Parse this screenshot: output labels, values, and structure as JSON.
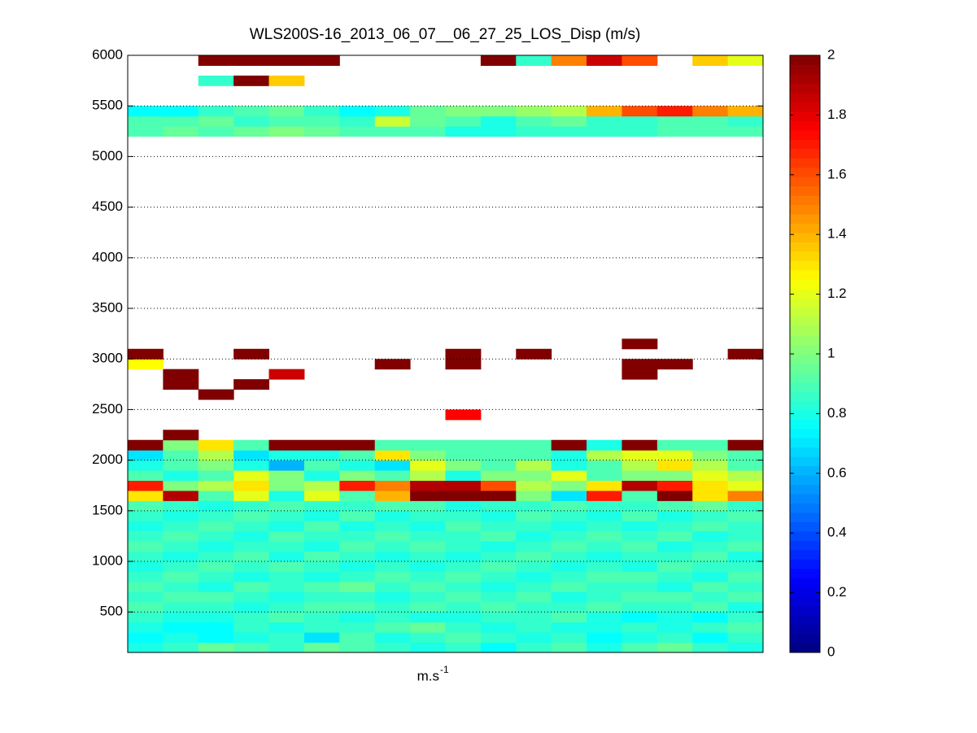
{
  "chart_data": {
    "type": "heatmap",
    "title": "WLS200S-16_2013_06_07__06_27_25_LOS_Disp (m/s)",
    "xlabel": "m.s",
    "xlabel_sup": "-1",
    "ylim": [
      100,
      6000
    ],
    "yticks": [
      500,
      1000,
      1500,
      2000,
      2500,
      3000,
      3500,
      4000,
      4500,
      5000,
      5500,
      6000
    ],
    "grid": "y",
    "colormap": "jet",
    "clim": [
      0,
      2
    ],
    "cticks": [
      0,
      0.2,
      0.4,
      0.6,
      0.8,
      1,
      1.2,
      1.4,
      1.6,
      1.8,
      2
    ],
    "row_height": 100,
    "z": [
      [
        0.8,
        0.85,
        0.95,
        0.9,
        0.85,
        0.95,
        0.9,
        0.85,
        0.8,
        0.85,
        0.75,
        0.85,
        0.9,
        0.8,
        0.9,
        0.95,
        0.85,
        0.8
      ],
      [
        0.75,
        0.8,
        0.75,
        0.8,
        0.85,
        0.7,
        0.9,
        0.8,
        0.85,
        0.9,
        0.85,
        0.8,
        0.85,
        0.75,
        0.8,
        0.85,
        0.75,
        0.85
      ],
      [
        0.8,
        0.75,
        0.75,
        0.85,
        0.8,
        0.85,
        0.85,
        0.9,
        0.95,
        0.85,
        0.8,
        0.85,
        0.8,
        0.8,
        0.85,
        0.8,
        0.85,
        0.9
      ],
      [
        0.85,
        0.8,
        0.8,
        0.85,
        0.9,
        0.85,
        0.8,
        0.85,
        0.8,
        0.8,
        0.85,
        0.85,
        0.9,
        0.8,
        0.75,
        0.8,
        0.75,
        0.85
      ],
      [
        0.9,
        0.85,
        0.85,
        0.8,
        0.85,
        0.9,
        0.9,
        0.85,
        0.9,
        0.85,
        0.9,
        0.85,
        0.85,
        0.9,
        0.85,
        0.85,
        0.9,
        0.8
      ],
      [
        0.85,
        0.9,
        0.9,
        0.85,
        0.8,
        0.85,
        0.85,
        0.8,
        0.85,
        0.9,
        0.85,
        0.9,
        0.8,
        0.85,
        0.9,
        0.9,
        0.85,
        0.9
      ],
      [
        0.9,
        0.85,
        0.8,
        0.9,
        0.85,
        0.9,
        0.95,
        0.85,
        0.9,
        0.85,
        0.8,
        0.85,
        0.9,
        0.85,
        0.85,
        0.8,
        0.9,
        0.85
      ],
      [
        0.85,
        0.9,
        0.85,
        0.8,
        0.85,
        0.8,
        0.85,
        0.9,
        0.85,
        0.9,
        0.85,
        0.8,
        0.85,
        0.9,
        0.9,
        0.85,
        0.8,
        0.9
      ],
      [
        0.8,
        0.85,
        0.9,
        0.85,
        0.9,
        0.85,
        0.8,
        0.85,
        0.8,
        0.85,
        0.9,
        0.85,
        0.8,
        0.85,
        0.8,
        0.9,
        0.85,
        0.85
      ],
      [
        0.85,
        0.8,
        0.85,
        0.9,
        0.8,
        0.9,
        0.85,
        0.8,
        0.85,
        0.8,
        0.85,
        0.9,
        0.85,
        0.8,
        0.85,
        0.85,
        0.9,
        0.8
      ],
      [
        0.9,
        0.85,
        0.8,
        0.85,
        0.85,
        0.8,
        0.9,
        0.85,
        0.9,
        0.85,
        0.8,
        0.85,
        0.9,
        0.85,
        0.9,
        0.8,
        0.85,
        0.9
      ],
      [
        0.85,
        0.9,
        0.85,
        0.8,
        0.9,
        0.85,
        0.85,
        0.9,
        0.85,
        0.85,
        0.9,
        0.8,
        0.85,
        0.9,
        0.85,
        0.9,
        0.8,
        0.85
      ],
      [
        0.8,
        0.85,
        0.9,
        0.85,
        0.8,
        0.9,
        0.8,
        0.85,
        0.8,
        0.9,
        0.85,
        0.85,
        0.8,
        0.85,
        0.8,
        0.85,
        0.9,
        0.85
      ],
      [
        0.85,
        0.8,
        0.85,
        0.9,
        0.85,
        0.8,
        0.9,
        0.8,
        0.85,
        0.85,
        0.8,
        0.9,
        0.85,
        0.8,
        0.9,
        0.8,
        0.85,
        0.9
      ],
      [
        0.9,
        0.85,
        0.8,
        0.85,
        0.9,
        0.85,
        0.85,
        0.9,
        0.9,
        0.8,
        0.85,
        0.85,
        0.9,
        0.85,
        0.85,
        0.9,
        0.95,
        0.85
      ],
      [
        1.3,
        1.9,
        0.9,
        1.2,
        0.8,
        1.2,
        0.9,
        1.4,
        2,
        2,
        2,
        1,
        0.7,
        1.7,
        0.9,
        2,
        1.3,
        1.5
      ],
      [
        1.7,
        1,
        1.1,
        1.3,
        1,
        1.1,
        1.7,
        1.5,
        1.9,
        1.9,
        1.6,
        1.1,
        1,
        1.3,
        1.9,
        1.7,
        1.3,
        1.2
      ],
      [
        0.9,
        0.8,
        0.9,
        1.2,
        1,
        0.8,
        1,
        0.9,
        1.1,
        0.8,
        1,
        1,
        1.2,
        0.9,
        1,
        1,
        1.2,
        1.1
      ],
      [
        0.8,
        0.9,
        1,
        0.8,
        0.6,
        0.9,
        0.8,
        0.7,
        1.2,
        1,
        0.9,
        1.1,
        0.8,
        0.9,
        1.1,
        1.3,
        1.1,
        0.9
      ],
      [
        0.7,
        0.9,
        1.1,
        0.7,
        0.8,
        0.8,
        0.9,
        1.3,
        1,
        0.9,
        0.9,
        0.9,
        0.8,
        1.1,
        1.2,
        1.2,
        1,
        0.9
      ],
      [
        2,
        1,
        1.3,
        0.9,
        2,
        2,
        2,
        0.9,
        0.9,
        0.9,
        0.9,
        0.9,
        2,
        0.8,
        2,
        0.9,
        0.9,
        2
      ],
      [
        null,
        2,
        null,
        null,
        null,
        null,
        null,
        null,
        null,
        null,
        null,
        null,
        null,
        null,
        null,
        null,
        null,
        null
      ],
      [
        null,
        null,
        null,
        null,
        null,
        null,
        null,
        null,
        null,
        null,
        null,
        null,
        null,
        null,
        null,
        null,
        null,
        null
      ],
      [
        null,
        null,
        null,
        null,
        null,
        null,
        null,
        null,
        null,
        1.75,
        null,
        null,
        null,
        null,
        null,
        null,
        null,
        null
      ],
      [
        null,
        null,
        null,
        null,
        null,
        null,
        null,
        null,
        null,
        null,
        null,
        null,
        null,
        null,
        null,
        null,
        null,
        null
      ],
      [
        null,
        null,
        2,
        null,
        null,
        null,
        null,
        null,
        null,
        null,
        null,
        null,
        null,
        null,
        null,
        null,
        null,
        null
      ],
      [
        null,
        2,
        null,
        2,
        null,
        null,
        null,
        null,
        null,
        null,
        null,
        null,
        null,
        null,
        null,
        null,
        null,
        null
      ],
      [
        null,
        2,
        null,
        null,
        1.85,
        null,
        null,
        null,
        null,
        null,
        null,
        null,
        null,
        null,
        2,
        null,
        null,
        null
      ],
      [
        1.25,
        null,
        null,
        null,
        null,
        null,
        null,
        2,
        null,
        2,
        null,
        null,
        null,
        null,
        2,
        2,
        null,
        null
      ],
      [
        2,
        null,
        null,
        2,
        null,
        null,
        null,
        null,
        null,
        2,
        null,
        2,
        null,
        null,
        null,
        null,
        null,
        2
      ],
      [
        null,
        null,
        null,
        null,
        null,
        null,
        null,
        null,
        null,
        null,
        null,
        null,
        null,
        null,
        2,
        null,
        null,
        null
      ],
      [
        null,
        null,
        null,
        null,
        null,
        null,
        null,
        null,
        null,
        null,
        null,
        null,
        null,
        null,
        null,
        null,
        null,
        null
      ],
      [
        null,
        null,
        null,
        null,
        null,
        null,
        null,
        null,
        null,
        null,
        null,
        null,
        null,
        null,
        null,
        null,
        null,
        null
      ],
      [
        null,
        null,
        null,
        null,
        null,
        null,
        null,
        null,
        null,
        null,
        null,
        null,
        null,
        null,
        null,
        null,
        null,
        null
      ],
      [
        null,
        null,
        null,
        null,
        null,
        null,
        null,
        null,
        null,
        null,
        null,
        null,
        null,
        null,
        null,
        null,
        null,
        null
      ],
      [
        null,
        null,
        null,
        null,
        null,
        null,
        null,
        null,
        null,
        null,
        null,
        null,
        null,
        null,
        null,
        null,
        null,
        null
      ],
      [
        null,
        null,
        null,
        null,
        null,
        null,
        null,
        null,
        null,
        null,
        null,
        null,
        null,
        null,
        null,
        null,
        null,
        null
      ],
      [
        null,
        null,
        null,
        null,
        null,
        null,
        null,
        null,
        null,
        null,
        null,
        null,
        null,
        null,
        null,
        null,
        null,
        null
      ],
      [
        null,
        null,
        null,
        null,
        null,
        null,
        null,
        null,
        null,
        null,
        null,
        null,
        null,
        null,
        null,
        null,
        null,
        null
      ],
      [
        null,
        null,
        null,
        null,
        null,
        null,
        null,
        null,
        null,
        null,
        null,
        null,
        null,
        null,
        null,
        null,
        null,
        null
      ],
      [
        null,
        null,
        null,
        null,
        null,
        null,
        null,
        null,
        null,
        null,
        null,
        null,
        null,
        null,
        null,
        null,
        null,
        null
      ],
      [
        null,
        null,
        null,
        null,
        null,
        null,
        null,
        null,
        null,
        null,
        null,
        null,
        null,
        null,
        null,
        null,
        null,
        null
      ],
      [
        null,
        null,
        null,
        null,
        null,
        null,
        null,
        null,
        null,
        null,
        null,
        null,
        null,
        null,
        null,
        null,
        null,
        null
      ],
      [
        null,
        null,
        null,
        null,
        null,
        null,
        null,
        null,
        null,
        null,
        null,
        null,
        null,
        null,
        null,
        null,
        null,
        null
      ],
      [
        null,
        null,
        null,
        null,
        null,
        null,
        null,
        null,
        null,
        null,
        null,
        null,
        null,
        null,
        null,
        null,
        null,
        null
      ],
      [
        null,
        null,
        null,
        null,
        null,
        null,
        null,
        null,
        null,
        null,
        null,
        null,
        null,
        null,
        null,
        null,
        null,
        null
      ],
      [
        null,
        null,
        null,
        null,
        null,
        null,
        null,
        null,
        null,
        null,
        null,
        null,
        null,
        null,
        null,
        null,
        null,
        null
      ],
      [
        null,
        null,
        null,
        null,
        null,
        null,
        null,
        null,
        null,
        null,
        null,
        null,
        null,
        null,
        null,
        null,
        null,
        null
      ],
      [
        null,
        null,
        null,
        null,
        null,
        null,
        null,
        null,
        null,
        null,
        null,
        null,
        null,
        null,
        null,
        null,
        null,
        null
      ],
      [
        null,
        null,
        null,
        null,
        null,
        null,
        null,
        null,
        null,
        null,
        null,
        null,
        null,
        null,
        null,
        null,
        null,
        null
      ],
      [
        null,
        null,
        null,
        null,
        null,
        null,
        null,
        null,
        null,
        null,
        null,
        null,
        null,
        null,
        null,
        null,
        null,
        null
      ],
      [
        0.9,
        0.95,
        0.9,
        0.95,
        1,
        0.95,
        0.9,
        0.9,
        0.9,
        0.8,
        0.8,
        0.85,
        0.85,
        0.85,
        0.85,
        0.9,
        0.9,
        0.9
      ],
      [
        0.9,
        0.9,
        0.95,
        0.85,
        0.9,
        0.9,
        0.85,
        1.15,
        0.95,
        0.9,
        0.8,
        0.9,
        0.95,
        0.85,
        0.85,
        0.9,
        0.9,
        0.85
      ],
      [
        0.75,
        0.75,
        0.85,
        0.9,
        0.95,
        0.85,
        0.75,
        0.8,
        0.95,
        1,
        1,
        1.05,
        1.1,
        1.4,
        1.6,
        1.7,
        1.5,
        1.4
      ],
      [
        null,
        null,
        null,
        null,
        null,
        null,
        null,
        null,
        null,
        null,
        null,
        null,
        null,
        null,
        null,
        null,
        null,
        null
      ],
      [
        null,
        null,
        null,
        null,
        null,
        null,
        null,
        null,
        null,
        null,
        null,
        null,
        null,
        null,
        null,
        null,
        null,
        null
      ],
      [
        null,
        null,
        0.85,
        2,
        1.35,
        null,
        null,
        null,
        null,
        null,
        null,
        null,
        null,
        null,
        null,
        null,
        null,
        null
      ],
      [
        null,
        null,
        null,
        null,
        null,
        null,
        null,
        null,
        null,
        null,
        null,
        null,
        null,
        null,
        null,
        null,
        null,
        null
      ],
      [
        null,
        null,
        2,
        2,
        2,
        2,
        null,
        null,
        null,
        null,
        2,
        0.85,
        1.5,
        1.85,
        1.6,
        null,
        1.35,
        1.2
      ]
    ]
  }
}
